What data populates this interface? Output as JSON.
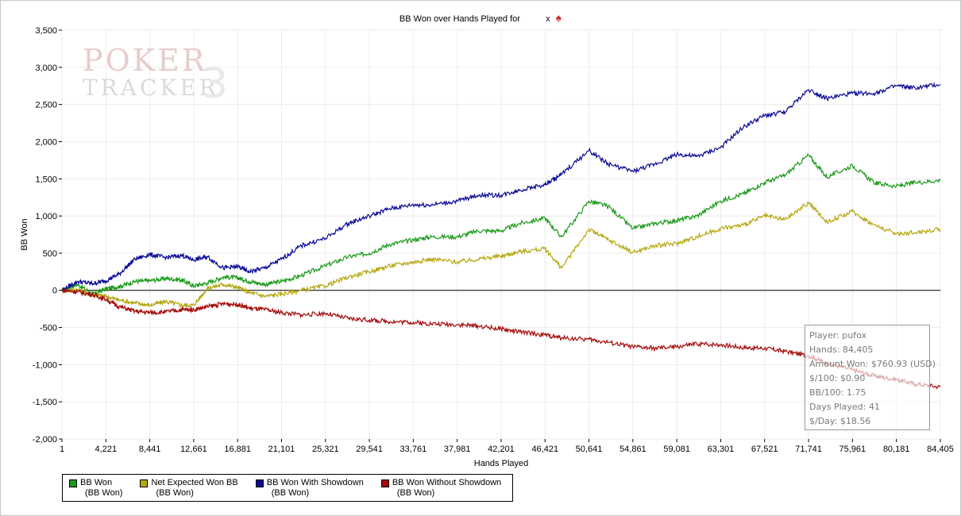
{
  "header": {
    "title": "BB Won over Hands Played for",
    "title_suffix": "x",
    "spade_icon": "spade-icon"
  },
  "logo": {
    "line1": "POKER",
    "line2": "TRACKER",
    "mark": "3"
  },
  "tooltip": {
    "player": "Player: pufox",
    "hands": "Hands: 84,405",
    "amount_won": "Amount Won: $760.93 (USD)",
    "per100_dollars": "$/100: $0.90",
    "bb_per100": "BB/100: 1.75",
    "days_played": "Days Played: 41",
    "per_day": "$/Day: $18.56"
  },
  "legend": [
    {
      "label": "BB Won",
      "sub": "(BB Won)",
      "color": "#1a9a1a"
    },
    {
      "label": "Net Expected Won BB",
      "sub": "(BB Won)",
      "color": "#b5a712"
    },
    {
      "label": "BB Won With Showdown",
      "sub": "(BB Won)",
      "color": "#0a0a96"
    },
    {
      "label": "BB Won Without Showdown",
      "sub": "(BB Won)",
      "color": "#a50a0a"
    }
  ],
  "chart_data": {
    "type": "line",
    "title": "BB Won over Hands Played for",
    "xlabel": "Hands Played",
    "ylabel": "BB Won",
    "xlim": [
      1,
      84405
    ],
    "ylim": [
      -2000,
      3500
    ],
    "x_ticks": [
      1,
      4221,
      8441,
      12661,
      16881,
      21101,
      25321,
      29541,
      33761,
      37981,
      42201,
      46421,
      50641,
      54861,
      59081,
      63301,
      67521,
      71741,
      75961,
      80181,
      84405
    ],
    "x_tick_labels": [
      "1",
      "4,221",
      "8,441",
      "12,661",
      "16,881",
      "21,101",
      "25,321",
      "29,541",
      "33,761",
      "37,981",
      "42,201",
      "46,421",
      "50,641",
      "54,861",
      "59,081",
      "63,301",
      "67,521",
      "71,741",
      "75,961",
      "80,181",
      "84,405"
    ],
    "y_ticks": [
      -2000,
      -1500,
      -1000,
      -500,
      0,
      500,
      1000,
      1500,
      2000,
      2500,
      3000,
      3500
    ],
    "y_tick_labels": [
      "-2,000",
      "-1,500",
      "-1,000",
      "-500",
      "0",
      "500",
      "1,000",
      "1,500",
      "2,000",
      "2,500",
      "3,000",
      "3,500"
    ],
    "grid": true,
    "legend_position": "bottom-left",
    "series": [
      {
        "name": "BB Won",
        "color": "#1a9a1a",
        "x": [
          1,
          1500,
          3000,
          4221,
          5500,
          7000,
          8441,
          10000,
          11500,
          12661,
          14000,
          15500,
          16881,
          18000,
          19500,
          21101,
          23000,
          25321,
          27500,
          29541,
          31500,
          33761,
          35500,
          37981,
          40000,
          42201,
          44000,
          46421,
          48000,
          50641,
          52500,
          54861,
          57000,
          59081,
          61000,
          63301,
          65500,
          67521,
          69500,
          71741,
          73500,
          75961,
          78000,
          80181,
          82000,
          84405
        ],
        "y": [
          0,
          80,
          -50,
          20,
          50,
          120,
          130,
          160,
          140,
          60,
          100,
          180,
          170,
          120,
          80,
          120,
          200,
          330,
          450,
          500,
          620,
          680,
          720,
          720,
          800,
          800,
          900,
          970,
          720,
          1200,
          1130,
          830,
          900,
          940,
          1000,
          1200,
          1300,
          1450,
          1550,
          1820,
          1520,
          1680,
          1450,
          1400,
          1450,
          1480
        ]
      },
      {
        "name": "Net Expected Won BB",
        "color": "#b5a712",
        "x": [
          1,
          1500,
          3000,
          4221,
          5500,
          7000,
          8441,
          10000,
          11500,
          12661,
          14000,
          15500,
          16881,
          18000,
          19500,
          21101,
          23000,
          25321,
          27500,
          29541,
          31500,
          33761,
          35500,
          37981,
          40000,
          42201,
          44000,
          46421,
          48000,
          50641,
          52500,
          54861,
          57000,
          59081,
          61000,
          63301,
          65500,
          67521,
          69500,
          71741,
          73500,
          75961,
          78000,
          80181,
          82000,
          84405
        ],
        "y": [
          0,
          10,
          -60,
          -80,
          -130,
          -170,
          -200,
          -150,
          -200,
          -200,
          30,
          80,
          40,
          -30,
          -80,
          -50,
          0,
          60,
          180,
          250,
          330,
          380,
          420,
          380,
          420,
          460,
          520,
          560,
          300,
          820,
          680,
          510,
          600,
          630,
          720,
          830,
          880,
          1000,
          950,
          1180,
          920,
          1060,
          880,
          760,
          780,
          820
        ]
      },
      {
        "name": "BB Won With Showdown",
        "color": "#0a0a96",
        "x": [
          1,
          1500,
          3000,
          4221,
          5500,
          7000,
          8441,
          10000,
          11500,
          12661,
          14000,
          15500,
          16881,
          18000,
          19500,
          21101,
          23000,
          25321,
          27500,
          29541,
          31500,
          33761,
          35500,
          37981,
          40000,
          42201,
          44000,
          46421,
          48000,
          50641,
          52500,
          54861,
          57000,
          59081,
          61000,
          63301,
          65500,
          67521,
          69500,
          71741,
          73500,
          75961,
          78000,
          80181,
          82000,
          84405
        ],
        "y": [
          0,
          120,
          90,
          130,
          220,
          420,
          480,
          440,
          470,
          410,
          450,
          300,
          320,
          250,
          300,
          420,
          600,
          700,
          900,
          1000,
          1100,
          1150,
          1150,
          1200,
          1280,
          1280,
          1350,
          1420,
          1560,
          1880,
          1700,
          1600,
          1700,
          1830,
          1800,
          1920,
          2200,
          2350,
          2400,
          2700,
          2580,
          2650,
          2650,
          2750,
          2720,
          2770
        ]
      },
      {
        "name": "BB Won Without Showdown",
        "color": "#a50a0a",
        "x": [
          1,
          1500,
          3000,
          4221,
          5500,
          7000,
          8441,
          10000,
          11500,
          12661,
          14000,
          15500,
          16881,
          18000,
          19500,
          21101,
          23000,
          25321,
          27500,
          29541,
          31500,
          33761,
          35500,
          37981,
          40000,
          42201,
          44000,
          46421,
          48000,
          50641,
          52500,
          54861,
          57000,
          59081,
          61000,
          63301,
          65500,
          67521,
          69500,
          71741,
          73500,
          75961,
          78000,
          80181,
          82000,
          84405
        ],
        "y": [
          0,
          -20,
          -60,
          -120,
          -220,
          -280,
          -300,
          -290,
          -260,
          -260,
          -220,
          -180,
          -190,
          -240,
          -260,
          -300,
          -330,
          -310,
          -380,
          -400,
          -420,
          -430,
          -450,
          -460,
          -480,
          -520,
          -560,
          -600,
          -640,
          -660,
          -700,
          -760,
          -780,
          -760,
          -720,
          -730,
          -770,
          -780,
          -820,
          -880,
          -980,
          -1070,
          -1150,
          -1200,
          -1260,
          -1300
        ]
      }
    ]
  }
}
